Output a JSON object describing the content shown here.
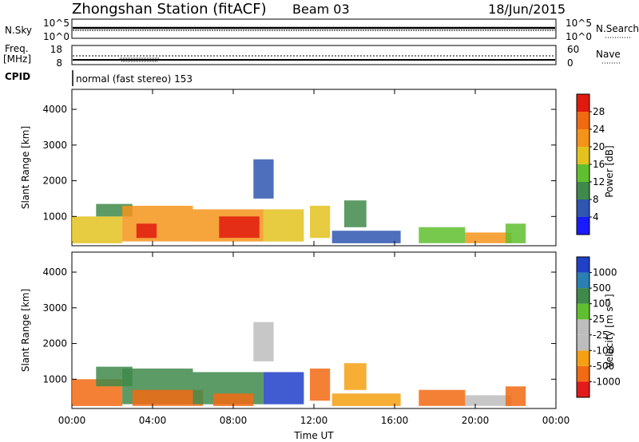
{
  "header": {
    "title": "Zhongshan Station (fitACF)",
    "beam": "Beam 03",
    "date": "18/Jun/2015"
  },
  "status_panels": {
    "nsky_label": "N.Sky",
    "nsky_ticks": [
      "10^5",
      "10^0"
    ],
    "nsearch_label": "N.Search",
    "nsearch_ticks": [
      "10^5",
      "10^0"
    ],
    "freq_label_1": "Freq.",
    "freq_label_2": "[MHz]",
    "freq_ticks": [
      "18",
      "8"
    ],
    "nave_label": "Nave",
    "nave_ticks": [
      "60",
      "0"
    ],
    "cpid_label": "CPID",
    "cpid_text": "normal (fast stereo) 153"
  },
  "chart_data": [
    {
      "type": "heatmap",
      "title": "",
      "quantity": "Power",
      "colorbar_label": "Power [dB]",
      "colorbar_ticks": [
        "4",
        "8",
        "12",
        "16",
        "20",
        "24",
        "28"
      ],
      "colors": [
        "#1a1aff",
        "#2f56b0",
        "#3f8a4a",
        "#5fc02f",
        "#e3c21f",
        "#f4941a",
        "#f06a12",
        "#e01a0e"
      ],
      "xlabel": "",
      "ylabel": "Slant Range [km]",
      "ylim": [
        180,
        4560
      ],
      "yticks": [
        "1000",
        "2000",
        "3000",
        "4000"
      ],
      "xlim": [
        0,
        24
      ],
      "patches": [
        {
          "t0": 0.0,
          "t1": 2.5,
          "r0": 250,
          "r1": 1000,
          "level": 4
        },
        {
          "t0": 1.2,
          "t1": 3.0,
          "r0": 1000,
          "r1": 1350,
          "level": 2
        },
        {
          "t0": 2.5,
          "t1": 6.0,
          "r0": 300,
          "r1": 1300,
          "level": 5
        },
        {
          "t0": 3.2,
          "t1": 4.2,
          "r0": 400,
          "r1": 800,
          "level": 7
        },
        {
          "t0": 6.0,
          "t1": 9.5,
          "r0": 300,
          "r1": 1200,
          "level": 5
        },
        {
          "t0": 7.3,
          "t1": 9.3,
          "r0": 400,
          "r1": 1000,
          "level": 7
        },
        {
          "t0": 9.0,
          "t1": 10.0,
          "r0": 1500,
          "r1": 2600,
          "level": 1
        },
        {
          "t0": 9.5,
          "t1": 11.5,
          "r0": 300,
          "r1": 1200,
          "level": 4
        },
        {
          "t0": 11.8,
          "t1": 12.8,
          "r0": 400,
          "r1": 1300,
          "level": 4
        },
        {
          "t0": 13.5,
          "t1": 14.6,
          "r0": 700,
          "r1": 1450,
          "level": 2
        },
        {
          "t0": 12.9,
          "t1": 16.3,
          "r0": 250,
          "r1": 600,
          "level": 1
        },
        {
          "t0": 17.2,
          "t1": 19.5,
          "r0": 250,
          "r1": 700,
          "level": 3
        },
        {
          "t0": 19.5,
          "t1": 21.8,
          "r0": 250,
          "r1": 550,
          "level": 5
        },
        {
          "t0": 21.5,
          "t1": 22.5,
          "r0": 250,
          "r1": 800,
          "level": 3
        }
      ]
    },
    {
      "type": "heatmap",
      "title": "",
      "quantity": "Velocity",
      "colorbar_label": "Velocity [m s⁻¹]",
      "colorbar_ticks": [
        "-1000",
        "-500",
        "-100",
        "-25",
        "25",
        "100",
        "500",
        "1000"
      ],
      "colors": [
        "#e31a1c",
        "#f26a13",
        "#f5a012",
        "#bdbdbd",
        "#bdbdbd",
        "#5fc02f",
        "#3f8a4a",
        "#2a7fb3",
        "#2040c8"
      ],
      "xlabel": "Time UT",
      "ylabel": "Slant Range [km]",
      "ylim": [
        180,
        4560
      ],
      "yticks": [
        "1000",
        "2000",
        "3000",
        "4000"
      ],
      "xlim": [
        0,
        24
      ],
      "xticks": [
        "00:00",
        "04:00",
        "08:00",
        "12:00",
        "16:00",
        "20:00",
        "00:00"
      ],
      "patches": [
        {
          "t0": 0.0,
          "t1": 2.5,
          "r0": 250,
          "r1": 1000,
          "level": 1
        },
        {
          "t0": 1.2,
          "t1": 3.0,
          "r0": 800,
          "r1": 1350,
          "level": 6
        },
        {
          "t0": 2.5,
          "t1": 6.0,
          "r0": 300,
          "r1": 1300,
          "level": 6
        },
        {
          "t0": 3.0,
          "t1": 6.5,
          "r0": 250,
          "r1": 700,
          "level": 1
        },
        {
          "t0": 6.0,
          "t1": 9.5,
          "r0": 300,
          "r1": 1200,
          "level": 6
        },
        {
          "t0": 7.0,
          "t1": 9.0,
          "r0": 250,
          "r1": 600,
          "level": 1
        },
        {
          "t0": 9.0,
          "t1": 10.0,
          "r0": 1500,
          "r1": 2600,
          "level": 3
        },
        {
          "t0": 9.5,
          "t1": 11.5,
          "r0": 300,
          "r1": 1200,
          "level": 8
        },
        {
          "t0": 11.8,
          "t1": 12.8,
          "r0": 400,
          "r1": 1300,
          "level": 1
        },
        {
          "t0": 13.5,
          "t1": 14.6,
          "r0": 700,
          "r1": 1450,
          "level": 2
        },
        {
          "t0": 12.9,
          "t1": 16.3,
          "r0": 250,
          "r1": 600,
          "level": 2
        },
        {
          "t0": 17.2,
          "t1": 19.5,
          "r0": 250,
          "r1": 700,
          "level": 1
        },
        {
          "t0": 19.5,
          "t1": 21.8,
          "r0": 250,
          "r1": 550,
          "level": 3
        },
        {
          "t0": 21.5,
          "t1": 22.5,
          "r0": 250,
          "r1": 800,
          "level": 1
        }
      ]
    }
  ]
}
